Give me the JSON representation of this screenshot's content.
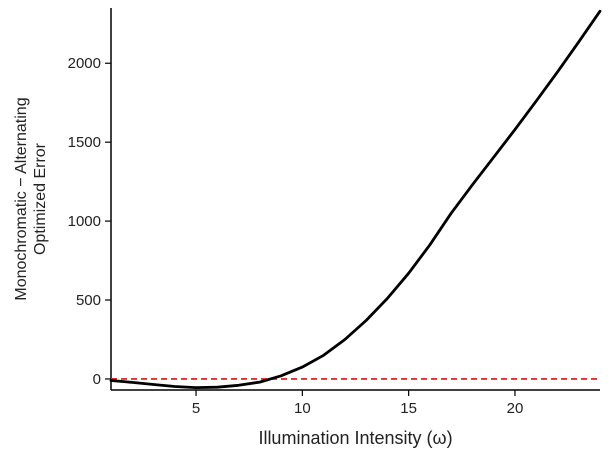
{
  "chart_data": {
    "type": "line",
    "title": "",
    "xlabel": "Illumination Intensity (ω)",
    "ylabel_lines": [
      "Monochromatic − Alternating",
      "Optimized Error"
    ],
    "xlim": [
      1,
      24
    ],
    "ylim": [
      -70,
      2350
    ],
    "xticks": [
      5,
      10,
      15,
      20
    ],
    "yticks": [
      0,
      500,
      1000,
      1500,
      2000
    ],
    "grid": false,
    "series": [
      {
        "color": "#000000",
        "style": "solid",
        "x": [
          1,
          2,
          3,
          4,
          5,
          6,
          7,
          8,
          9,
          10,
          11,
          12,
          13,
          14,
          15,
          16,
          17,
          18,
          19,
          20,
          21,
          22,
          23,
          24
        ],
        "y": [
          -10,
          -22,
          -35,
          -48,
          -55,
          -52,
          -40,
          -20,
          20,
          75,
          150,
          250,
          370,
          510,
          670,
          850,
          1050,
          1230,
          1405,
          1580,
          1760,
          1945,
          2135,
          2330
        ]
      }
    ],
    "reference_line": {
      "y": 0,
      "color": "#e03030",
      "style": "dashed"
    }
  }
}
